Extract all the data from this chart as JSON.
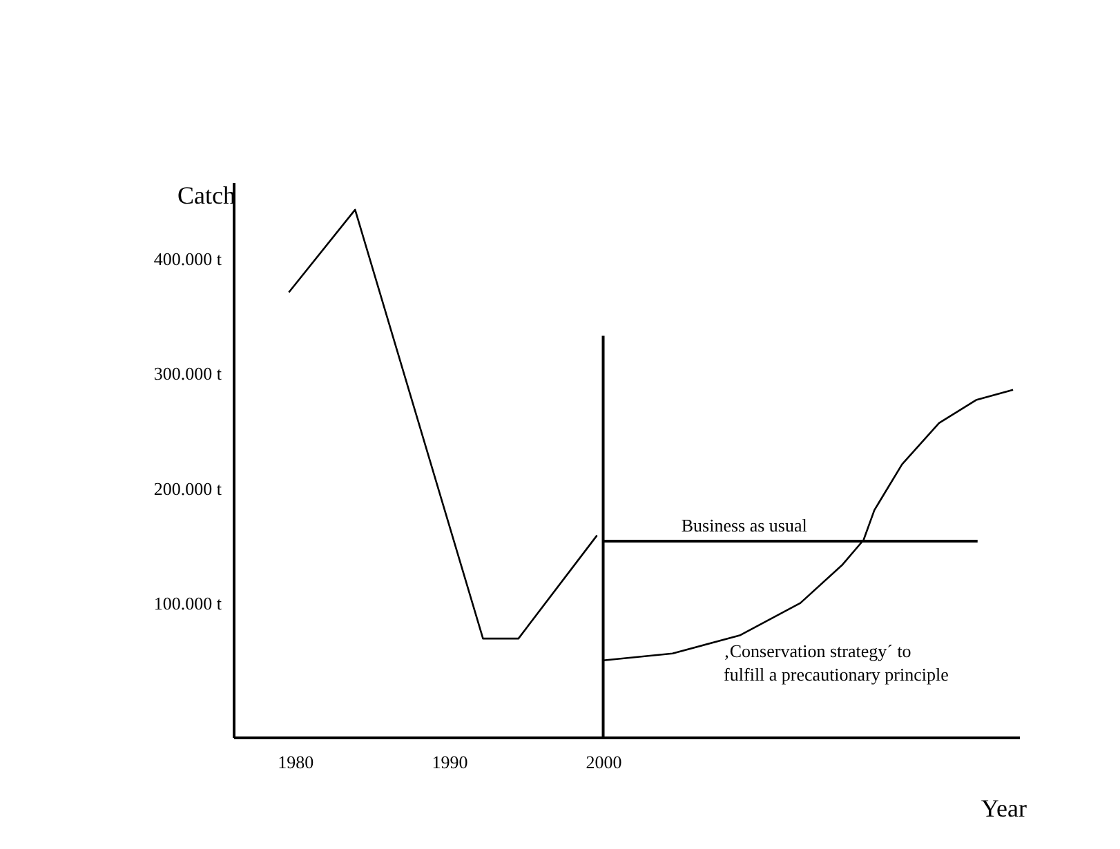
{
  "chart_data": {
    "type": "line",
    "xlabel": "Year",
    "ylabel": "Catch",
    "xlim": [
      1976,
      2027
    ],
    "xticks": [
      1980,
      1990,
      2000
    ],
    "ylim": [
      -17,
      467
    ],
    "yticks": [
      {
        "value": 100,
        "label": "100.000 t"
      },
      {
        "value": 200,
        "label": "200.000 t"
      },
      {
        "value": 300,
        "label": "300.000 t"
      },
      {
        "value": 400,
        "label": "400.000 t"
      }
    ],
    "grid": false,
    "marker": "none",
    "line_style": "solid",
    "series": [
      {
        "color": "#000000",
        "x": [
          1979.6,
          1983.9,
          1992.2,
          1994.5,
          1999.6
        ],
        "values": [
          371,
          443,
          69,
          69,
          159
        ]
      },
      {
        "color": "#000000",
        "x": [
          2000,
          2000
        ],
        "values": [
          -17,
          333
        ]
      },
      {
        "name": "Business as usual",
        "color": "#000000",
        "x": [
          2000,
          2024.3
        ],
        "values": [
          154,
          154
        ]
      },
      {
        "name": "‚Conservation strategy´ to\nfulfill a precautionary principle",
        "color": "#000000",
        "x": [
          2000.0,
          2004.5,
          2008.9,
          2012.8,
          2015.5,
          2016.9,
          2017.6,
          2019.4,
          2021.8,
          2024.2,
          2026.6
        ],
        "values": [
          50,
          56,
          72,
          100,
          133,
          155,
          181,
          221,
          257,
          277,
          286
        ]
      }
    ]
  }
}
